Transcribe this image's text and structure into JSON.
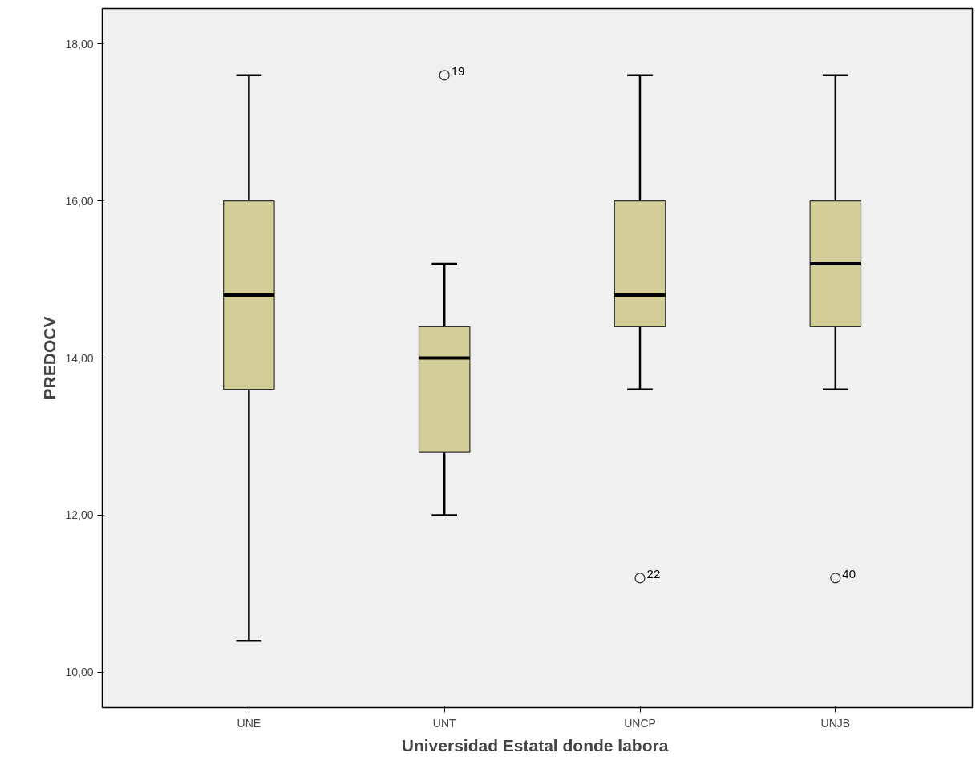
{
  "chart_data": {
    "type": "box",
    "xlabel": "Universidad Estatal donde  labora",
    "ylabel": "PREDOCV",
    "categories": [
      "UNE",
      "UNT",
      "UNCP",
      "UNJB"
    ],
    "color": "#d3ce97",
    "boxes": [
      {
        "low": 10.4,
        "q1": 13.6,
        "median": 14.8,
        "q3": 16.0,
        "high": 17.6
      },
      {
        "low": 12.0,
        "q1": 12.8,
        "median": 14.0,
        "q3": 14.4,
        "high": 15.2,
        "outliers": [
          17.6
        ]
      },
      {
        "low": 13.6,
        "q1": 14.4,
        "median": 14.8,
        "q3": 16.0,
        "high": 17.6,
        "outliers": [
          11.2
        ]
      },
      {
        "low": 13.6,
        "q1": 14.4,
        "median": 15.2,
        "q3": 16.0,
        "high": 17.6,
        "outliers": [
          11.2
        ]
      }
    ],
    "ylim": [
      9.55,
      18.45
    ],
    "yticks": [
      {
        "value": 10,
        "label": "10,00"
      },
      {
        "value": 12,
        "label": "12,00"
      },
      {
        "value": 14,
        "label": "14,00"
      },
      {
        "value": 16,
        "label": "16,00"
      },
      {
        "value": 18,
        "label": "18,00"
      }
    ],
    "grid": false,
    "annotations": [
      "19",
      "22",
      "40"
    ]
  }
}
